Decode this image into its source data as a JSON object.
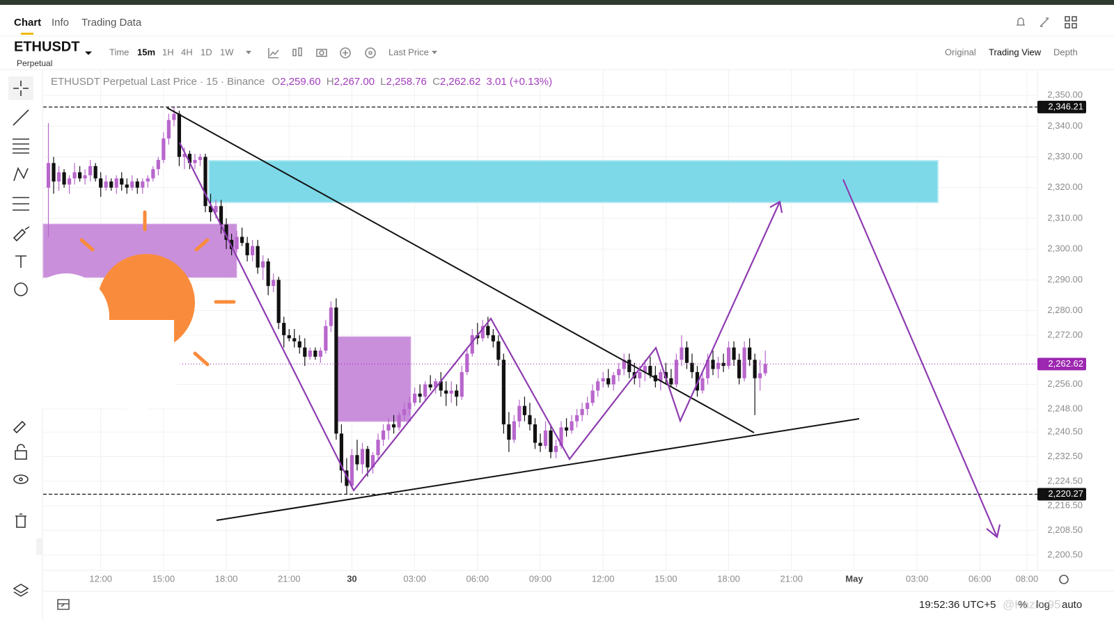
{
  "tabs": [
    "Chart",
    "Info",
    "Trading Data"
  ],
  "symbol": {
    "name": "ETHUSDT",
    "kind": "Perpetual"
  },
  "toolbar": {
    "time": "Time",
    "intervals": [
      "15m",
      "1H",
      "4H",
      "1D",
      "1W"
    ],
    "price_source": "Last Price"
  },
  "views": [
    "Original",
    "Trading View",
    "Depth"
  ],
  "legend": {
    "title": "ETHUSDT Perpetual Last Price · 15 · Binance",
    "o_key": "O",
    "open": "2,259.60",
    "h_key": "H",
    "high": "2,267.00",
    "l_key": "L",
    "low": "2,258.76",
    "c_key": "C",
    "close": "2,262.62",
    "change": "3.01 (+0.13%)"
  },
  "chart_data": {
    "type": "candlestick",
    "up_color": "#b866cc",
    "down_color": "#111111",
    "xlim": [
      -1,
      189
    ],
    "ylim": [
      2195.5,
      2358.4
    ],
    "grid": true,
    "xticks": [
      {
        "value": 10,
        "label": "12:00"
      },
      {
        "value": 22,
        "label": "15:00"
      },
      {
        "value": 34,
        "label": "18:00"
      },
      {
        "value": 46,
        "label": "21:00"
      },
      {
        "value": 58,
        "label": "30"
      },
      {
        "value": 70,
        "label": "03:00"
      },
      {
        "value": 82,
        "label": "06:00"
      },
      {
        "value": 94,
        "label": "09:00"
      },
      {
        "value": 106,
        "label": "12:00"
      },
      {
        "value": 118,
        "label": "15:00"
      },
      {
        "value": 130,
        "label": "18:00"
      },
      {
        "value": 142,
        "label": "21:00"
      },
      {
        "value": 154,
        "label": "May"
      },
      {
        "value": 166,
        "label": "03:00"
      },
      {
        "value": 178,
        "label": "06:00"
      },
      {
        "value": 187,
        "label": "08:00"
      }
    ],
    "yticks": [
      {
        "value": 2350,
        "label": "2,350.00"
      },
      {
        "value": 2340,
        "label": "2,340.00"
      },
      {
        "value": 2330,
        "label": "2,330.00"
      },
      {
        "value": 2320,
        "label": "2,320.00"
      },
      {
        "value": 2310,
        "label": "2,310.00"
      },
      {
        "value": 2300,
        "label": "2,300.00"
      },
      {
        "value": 2290,
        "label": "2,290.00"
      },
      {
        "value": 2280,
        "label": "2,280.00"
      },
      {
        "value": 2272,
        "label": "2,272.00"
      },
      {
        "value": 2256,
        "label": "2,256.00"
      },
      {
        "value": 2248,
        "label": "2,248.00"
      },
      {
        "value": 2240.5,
        "label": "2,240.50"
      },
      {
        "value": 2232.5,
        "label": "2,232.50"
      },
      {
        "value": 2224.5,
        "label": "2,224.50"
      },
      {
        "value": 2216.5,
        "label": "2,216.50"
      },
      {
        "value": 2208.5,
        "label": "2,208.50"
      },
      {
        "value": 2200.5,
        "label": "2,200.50"
      }
    ],
    "price_lines": [
      {
        "value": 2346.21,
        "label": "2,346.21",
        "color": "#111111"
      },
      {
        "value": 2262.62,
        "label": "2,262.62",
        "color": "#9c27b0"
      },
      {
        "value": 2220.27,
        "label": "2,220.27",
        "color": "#111111"
      }
    ],
    "ohlc": [
      [
        2320,
        2341,
        2304,
        2328
      ],
      [
        2328,
        2330,
        2318,
        2322
      ],
      [
        2322,
        2327,
        2319,
        2325
      ],
      [
        2325,
        2326,
        2320,
        2321
      ],
      [
        2321,
        2324,
        2318,
        2323
      ],
      [
        2323,
        2328,
        2321,
        2325
      ],
      [
        2325,
        2327,
        2322,
        2323
      ],
      [
        2323,
        2326,
        2321,
        2324
      ],
      [
        2324,
        2329,
        2322,
        2327
      ],
      [
        2327,
        2328,
        2322,
        2323
      ],
      [
        2323,
        2325,
        2317,
        2320
      ],
      [
        2320,
        2324,
        2319,
        2322
      ],
      [
        2322,
        2323,
        2319,
        2320
      ],
      [
        2320,
        2324,
        2318,
        2323
      ],
      [
        2323,
        2325,
        2319,
        2321
      ],
      [
        2321,
        2323,
        2318,
        2320
      ],
      [
        2320,
        2324,
        2319,
        2322
      ],
      [
        2322,
        2323,
        2318,
        2320
      ],
      [
        2320,
        2323,
        2318,
        2322
      ],
      [
        2322,
        2324,
        2320,
        2323
      ],
      [
        2323,
        2327,
        2322,
        2326
      ],
      [
        2326,
        2330,
        2324,
        2329
      ],
      [
        2329,
        2338,
        2328,
        2336
      ],
      [
        2336,
        2344,
        2334,
        2342
      ],
      [
        2342,
        2346.21,
        2340,
        2344
      ],
      [
        2344,
        2345,
        2327,
        2330
      ],
      [
        2330,
        2333,
        2326,
        2331
      ],
      [
        2331,
        2332,
        2326,
        2328
      ],
      [
        2328,
        2331,
        2326,
        2329
      ],
      [
        2329,
        2331,
        2327,
        2330
      ],
      [
        2330,
        2331,
        2312,
        2314
      ],
      [
        2314,
        2318,
        2309,
        2312
      ],
      [
        2312,
        2316,
        2310,
        2314
      ],
      [
        2314,
        2316,
        2305,
        2308
      ],
      [
        2308,
        2310,
        2300,
        2303
      ],
      [
        2303,
        2305,
        2298,
        2300
      ],
      [
        2300,
        2306,
        2299,
        2304
      ],
      [
        2304,
        2307,
        2301,
        2302
      ],
      [
        2302,
        2304,
        2296,
        2298
      ],
      [
        2298,
        2303,
        2296,
        2301
      ],
      [
        2301,
        2303,
        2292,
        2294
      ],
      [
        2294,
        2298,
        2290,
        2296
      ],
      [
        2296,
        2297,
        2285,
        2288
      ],
      [
        2288,
        2292,
        2286,
        2290
      ],
      [
        2290,
        2291,
        2274,
        2276
      ],
      [
        2276,
        2278,
        2268,
        2272
      ],
      [
        2272,
        2274,
        2270,
        2271
      ],
      [
        2271,
        2274,
        2268,
        2270
      ],
      [
        2270,
        2272,
        2266,
        2268
      ],
      [
        2268,
        2271,
        2262,
        2265
      ],
      [
        2265,
        2268,
        2264,
        2267
      ],
      [
        2267,
        2268,
        2264,
        2265
      ],
      [
        2265,
        2268,
        2263,
        2267
      ],
      [
        2267,
        2277,
        2266,
        2275
      ],
      [
        2275,
        2283,
        2273,
        2281
      ],
      [
        2281,
        2284,
        2238,
        2240
      ],
      [
        2240,
        2243,
        2224,
        2228
      ],
      [
        2228,
        2232,
        2220.27,
        2223
      ],
      [
        2223,
        2235,
        2222,
        2233
      ],
      [
        2233,
        2238,
        2228,
        2230
      ],
      [
        2230,
        2237,
        2227,
        2235
      ],
      [
        2235,
        2236,
        2226,
        2229
      ],
      [
        2229,
        2234,
        2227,
        2233
      ],
      [
        2233,
        2240,
        2231,
        2238
      ],
      [
        2238,
        2243,
        2236,
        2241
      ],
      [
        2241,
        2245,
        2238,
        2243
      ],
      [
        2243,
        2246,
        2240,
        2242
      ],
      [
        2242,
        2247,
        2241,
        2246
      ],
      [
        2246,
        2250,
        2244,
        2248
      ],
      [
        2248,
        2252,
        2246,
        2250
      ],
      [
        2250,
        2255,
        2249,
        2253
      ],
      [
        2253,
        2256,
        2250,
        2252
      ],
      [
        2252,
        2257,
        2251,
        2256
      ],
      [
        2256,
        2259,
        2254,
        2255
      ],
      [
        2255,
        2258,
        2253,
        2257
      ],
      [
        2257,
        2260,
        2252,
        2254
      ],
      [
        2254,
        2257,
        2249,
        2253
      ],
      [
        2253,
        2257,
        2250,
        2254
      ],
      [
        2254,
        2256,
        2249,
        2252
      ],
      [
        2252,
        2262,
        2251,
        2260
      ],
      [
        2260,
        2268,
        2259,
        2266
      ],
      [
        2266,
        2274,
        2265,
        2272
      ],
      [
        2272,
        2276,
        2269,
        2271
      ],
      [
        2271,
        2277,
        2270,
        2275
      ],
      [
        2275,
        2278,
        2271,
        2272
      ],
      [
        2272,
        2274,
        2268,
        2270
      ],
      [
        2270,
        2272,
        2262,
        2264
      ],
      [
        2264,
        2266,
        2240,
        2243
      ],
      [
        2243,
        2247,
        2234,
        2238
      ],
      [
        2238,
        2246,
        2237,
        2244
      ],
      [
        2244,
        2251,
        2242,
        2249
      ],
      [
        2249,
        2252,
        2244,
        2246
      ],
      [
        2246,
        2250,
        2241,
        2243
      ],
      [
        2243,
        2245,
        2235,
        2237
      ],
      [
        2237,
        2240,
        2234,
        2236
      ],
      [
        2236,
        2244,
        2235,
        2241
      ],
      [
        2241,
        2243,
        2232,
        2234
      ],
      [
        2234,
        2238,
        2232,
        2236
      ],
      [
        2236,
        2244,
        2235,
        2242
      ],
      [
        2242,
        2245,
        2239,
        2241
      ],
      [
        2241,
        2246,
        2240,
        2244
      ],
      [
        2244,
        2248,
        2242,
        2246
      ],
      [
        2246,
        2250,
        2244,
        2248
      ],
      [
        2248,
        2252,
        2246,
        2250
      ],
      [
        2250,
        2256,
        2249,
        2254
      ],
      [
        2254,
        2258,
        2252,
        2257
      ],
      [
        2257,
        2260,
        2255,
        2258
      ],
      [
        2258,
        2261,
        2255,
        2256
      ],
      [
        2256,
        2260,
        2254,
        2259
      ],
      [
        2259,
        2263,
        2257,
        2261
      ],
      [
        2261,
        2266,
        2259,
        2264
      ],
      [
        2264,
        2266,
        2258,
        2260
      ],
      [
        2260,
        2263,
        2256,
        2258
      ],
      [
        2258,
        2262,
        2255,
        2260
      ],
      [
        2260,
        2264,
        2257,
        2262
      ],
      [
        2262,
        2265,
        2258,
        2259
      ],
      [
        2259,
        2262,
        2255,
        2257
      ],
      [
        2257,
        2261,
        2254,
        2260
      ],
      [
        2260,
        2263,
        2256,
        2258
      ],
      [
        2258,
        2261,
        2255,
        2256
      ],
      [
        2256,
        2266,
        2255,
        2264
      ],
      [
        2264,
        2272,
        2262,
        2268
      ],
      [
        2268,
        2270,
        2261,
        2263
      ],
      [
        2263,
        2266,
        2258,
        2260
      ],
      [
        2260,
        2262,
        2252,
        2254
      ],
      [
        2254,
        2260,
        2253,
        2258
      ],
      [
        2258,
        2266,
        2256,
        2264
      ],
      [
        2264,
        2267,
        2259,
        2261
      ],
      [
        2261,
        2265,
        2258,
        2263
      ],
      [
        2263,
        2266,
        2260,
        2262
      ],
      [
        2262,
        2270,
        2261,
        2268
      ],
      [
        2268,
        2270,
        2262,
        2264
      ],
      [
        2264,
        2266,
        2256,
        2258
      ],
      [
        2258,
        2270,
        2257,
        2268
      ],
      [
        2268,
        2271,
        2262,
        2264
      ],
      [
        2264,
        2266,
        2246,
        2258
      ],
      [
        2258,
        2264,
        2254,
        2259.6
      ],
      [
        2259.6,
        2267,
        2258.76,
        2262.62
      ]
    ]
  },
  "status": {
    "clock": "19:52:36 UTC+5",
    "percent": "%",
    "log": "log",
    "auto": "auto",
    "watermark": "@Kazmi95"
  }
}
